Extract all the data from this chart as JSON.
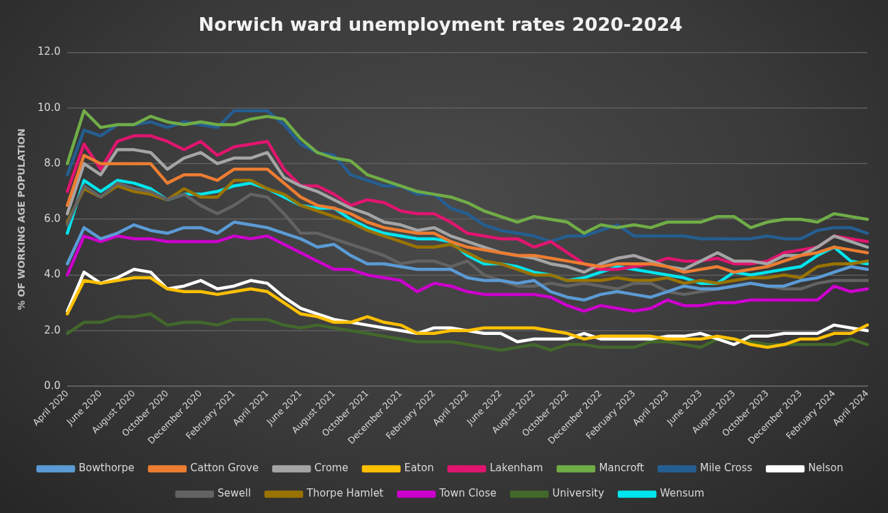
{
  "chart_data": {
    "type": "line",
    "title": "Norwich ward unemployment rates 2020-2024",
    "ylabel": "% OF WORKING AGE POPULATION",
    "categories": [
      "April 2020",
      null,
      "June 2020",
      null,
      "August 2020",
      null,
      "October 2020",
      null,
      "December 2020",
      null,
      "February 2021",
      null,
      "April 2021",
      null,
      "June 2021",
      null,
      "August 2021",
      null,
      "October 2021",
      null,
      "December 2021",
      null,
      "February 2022",
      null,
      "April 2022",
      null,
      "June 2022",
      null,
      "August 2022",
      null,
      "October 2022",
      null,
      "December 2022",
      null,
      "February 2023",
      null,
      "April 2023",
      null,
      "June 2023",
      null,
      "August 2023",
      null,
      "October 2023",
      null,
      "December 2023",
      null,
      "February 2024",
      null,
      "April 2024"
    ],
    "ylim": [
      0,
      12
    ],
    "yticks": [
      {
        "value": 0,
        "label": "0.0"
      },
      {
        "value": 2,
        "label": "2.0"
      },
      {
        "value": 4,
        "label": "4.0"
      },
      {
        "value": 6,
        "label": "6.0"
      },
      {
        "value": 8,
        "label": "8.0"
      },
      {
        "value": 10,
        "label": "10.0"
      },
      {
        "value": 12,
        "label": "12.0"
      }
    ],
    "grid": "y",
    "legend": "bottom",
    "marker": "none",
    "line_style": "solid",
    "series": [
      {
        "name": "Bowthorpe",
        "color": "#5b9bd5",
        "values": [
          4.4,
          5.7,
          5.3,
          5.5,
          5.8,
          5.6,
          5.5,
          5.7,
          5.7,
          5.5,
          5.9,
          5.8,
          5.7,
          5.5,
          5.3,
          5.0,
          5.1,
          4.7,
          4.4,
          4.4,
          4.3,
          4.2,
          4.2,
          4.2,
          3.9,
          3.8,
          3.8,
          3.7,
          3.8,
          3.4,
          3.2,
          3.1,
          3.3,
          3.4,
          3.3,
          3.2,
          3.4,
          3.6,
          3.5,
          3.5,
          3.6,
          3.7,
          3.6,
          3.6,
          3.8,
          3.9,
          4.1,
          4.3,
          4.2
        ]
      },
      {
        "name": "Catton Grove",
        "color": "#ed7d31",
        "values": [
          6.5,
          8.3,
          8.0,
          8.0,
          8.0,
          8.0,
          7.3,
          7.6,
          7.6,
          7.4,
          7.8,
          7.8,
          7.8,
          7.3,
          6.8,
          6.5,
          6.4,
          6.2,
          5.9,
          5.7,
          5.6,
          5.5,
          5.5,
          5.2,
          5.0,
          4.9,
          4.8,
          4.7,
          4.7,
          4.6,
          4.5,
          4.4,
          4.3,
          4.4,
          4.4,
          4.4,
          4.3,
          4.1,
          4.2,
          4.3,
          4.1,
          4.2,
          4.3,
          4.5,
          4.7,
          4.8,
          5.0,
          4.9,
          4.8
        ]
      },
      {
        "name": "Crome",
        "color": "#a5a5a5",
        "values": [
          6.2,
          8.0,
          7.6,
          8.5,
          8.5,
          8.4,
          7.8,
          8.2,
          8.4,
          8.0,
          8.2,
          8.2,
          8.4,
          7.5,
          7.2,
          7.0,
          6.7,
          6.4,
          6.2,
          5.9,
          5.8,
          5.6,
          5.7,
          5.4,
          5.2,
          5.0,
          4.8,
          4.7,
          4.6,
          4.4,
          4.3,
          4.1,
          4.4,
          4.6,
          4.7,
          4.5,
          4.3,
          4.2,
          4.5,
          4.8,
          4.5,
          4.5,
          4.4,
          4.7,
          4.7,
          5.0,
          5.4,
          5.2,
          5.0
        ]
      },
      {
        "name": "Eaton",
        "color": "#ffc000",
        "values": [
          2.6,
          3.8,
          3.7,
          3.8,
          3.9,
          3.9,
          3.5,
          3.4,
          3.4,
          3.3,
          3.4,
          3.5,
          3.4,
          3.0,
          2.6,
          2.5,
          2.3,
          2.3,
          2.5,
          2.3,
          2.2,
          1.9,
          1.9,
          2.0,
          2.0,
          2.1,
          2.1,
          2.1,
          2.1,
          2.0,
          1.9,
          1.7,
          1.8,
          1.8,
          1.8,
          1.8,
          1.7,
          1.7,
          1.7,
          1.8,
          1.7,
          1.5,
          1.4,
          1.5,
          1.7,
          1.7,
          1.9,
          1.9,
          2.2
        ]
      },
      {
        "name": "Lakenham",
        "color": "#e0156f",
        "values": [
          7.0,
          8.7,
          7.8,
          8.8,
          9.0,
          9.0,
          8.8,
          8.5,
          8.8,
          8.3,
          8.6,
          8.7,
          8.8,
          7.8,
          7.2,
          7.2,
          6.9,
          6.5,
          6.7,
          6.6,
          6.3,
          6.2,
          6.2,
          5.9,
          5.5,
          5.4,
          5.3,
          5.3,
          5.0,
          5.2,
          4.8,
          4.4,
          4.2,
          4.2,
          4.3,
          4.4,
          4.6,
          4.5,
          4.5,
          4.6,
          4.4,
          4.4,
          4.5,
          4.8,
          4.9,
          5.0,
          5.4,
          5.3,
          5.2
        ]
      },
      {
        "name": "Mancroft",
        "color": "#70ad47",
        "values": [
          8.0,
          9.9,
          9.3,
          9.4,
          9.4,
          9.7,
          9.5,
          9.4,
          9.5,
          9.4,
          9.4,
          9.6,
          9.7,
          9.6,
          8.9,
          8.4,
          8.2,
          8.1,
          7.6,
          7.4,
          7.2,
          7.0,
          6.9,
          6.8,
          6.6,
          6.3,
          6.1,
          5.9,
          6.1,
          6.0,
          5.9,
          5.5,
          5.8,
          5.7,
          5.8,
          5.7,
          5.9,
          5.9,
          5.9,
          6.1,
          6.1,
          5.7,
          5.9,
          6.0,
          6.0,
          5.9,
          6.2,
          6.1,
          6.0
        ]
      },
      {
        "name": "Mile Cross",
        "color": "#255e91",
        "values": [
          7.6,
          9.2,
          9.0,
          9.4,
          9.4,
          9.5,
          9.3,
          9.5,
          9.4,
          9.3,
          9.9,
          9.9,
          9.9,
          9.4,
          8.7,
          8.4,
          8.3,
          7.6,
          7.4,
          7.2,
          7.2,
          6.9,
          6.9,
          6.4,
          6.2,
          5.8,
          5.6,
          5.5,
          5.4,
          5.2,
          5.4,
          5.4,
          5.6,
          5.8,
          5.4,
          5.4,
          5.4,
          5.4,
          5.3,
          5.3,
          5.3,
          5.3,
          5.4,
          5.3,
          5.3,
          5.6,
          5.7,
          5.7,
          5.5
        ]
      },
      {
        "name": "Nelson",
        "color": "#ffffff",
        "values": [
          2.7,
          4.1,
          3.7,
          3.9,
          4.2,
          4.1,
          3.5,
          3.6,
          3.8,
          3.5,
          3.6,
          3.8,
          3.7,
          3.2,
          2.8,
          2.6,
          2.4,
          2.3,
          2.2,
          2.1,
          2.0,
          1.9,
          2.1,
          2.1,
          2.0,
          1.9,
          1.9,
          1.6,
          1.7,
          1.7,
          1.7,
          1.9,
          1.7,
          1.7,
          1.7,
          1.7,
          1.8,
          1.8,
          1.9,
          1.7,
          1.5,
          1.8,
          1.8,
          1.9,
          1.9,
          1.9,
          2.2,
          2.1,
          2.0
        ]
      },
      {
        "name": "Sewell",
        "color": "#636363",
        "values": [
          5.8,
          7.2,
          6.8,
          7.3,
          7.1,
          7.0,
          6.7,
          6.9,
          6.5,
          6.2,
          6.5,
          6.9,
          6.8,
          6.2,
          5.5,
          5.5,
          5.3,
          5.1,
          4.9,
          4.7,
          4.4,
          4.5,
          4.5,
          4.3,
          4.5,
          4.0,
          3.8,
          3.6,
          3.6,
          3.7,
          3.6,
          3.7,
          3.6,
          3.5,
          3.7,
          3.7,
          3.4,
          3.3,
          3.4,
          3.5,
          3.6,
          3.7,
          3.6,
          3.5,
          3.5,
          3.7,
          3.8,
          3.8,
          3.8
        ]
      },
      {
        "name": "Thorpe Hamlet",
        "color": "#997300",
        "values": [
          5.9,
          7.1,
          6.8,
          7.2,
          7.0,
          6.9,
          6.7,
          7.1,
          6.8,
          6.8,
          7.4,
          7.4,
          7.1,
          6.9,
          6.5,
          6.3,
          6.1,
          5.9,
          5.6,
          5.4,
          5.2,
          5.0,
          5.0,
          5.1,
          4.8,
          4.5,
          4.4,
          4.2,
          4.0,
          4.0,
          3.8,
          3.8,
          3.8,
          3.9,
          3.8,
          3.8,
          3.9,
          3.7,
          3.8,
          3.7,
          3.8,
          3.9,
          3.9,
          4.0,
          3.9,
          4.3,
          4.4,
          4.4,
          4.5
        ]
      },
      {
        "name": "Town Close",
        "color": "#cc00cc",
        "values": [
          4.0,
          5.4,
          5.2,
          5.4,
          5.3,
          5.3,
          5.2,
          5.2,
          5.2,
          5.2,
          5.4,
          5.3,
          5.4,
          5.1,
          4.8,
          4.5,
          4.2,
          4.2,
          4.0,
          3.9,
          3.8,
          3.4,
          3.7,
          3.6,
          3.4,
          3.3,
          3.3,
          3.3,
          3.3,
          3.2,
          2.9,
          2.7,
          2.9,
          2.8,
          2.7,
          2.8,
          3.1,
          2.9,
          2.9,
          3.0,
          3.0,
          3.1,
          3.1,
          3.1,
          3.1,
          3.1,
          3.6,
          3.4,
          3.5
        ]
      },
      {
        "name": "University",
        "color": "#43682b",
        "values": [
          1.9,
          2.3,
          2.3,
          2.5,
          2.5,
          2.6,
          2.2,
          2.3,
          2.3,
          2.2,
          2.4,
          2.4,
          2.4,
          2.2,
          2.1,
          2.2,
          2.1,
          2.0,
          1.9,
          1.8,
          1.7,
          1.6,
          1.6,
          1.6,
          1.5,
          1.4,
          1.3,
          1.4,
          1.5,
          1.3,
          1.5,
          1.5,
          1.4,
          1.4,
          1.4,
          1.6,
          1.6,
          1.5,
          1.4,
          1.7,
          1.7,
          1.6,
          1.5,
          1.5,
          1.5,
          1.5,
          1.5,
          1.7,
          1.5
        ]
      },
      {
        "name": "Wensum",
        "color": "#00e5ee",
        "values": [
          5.5,
          7.4,
          7.0,
          7.4,
          7.3,
          7.1,
          6.7,
          6.9,
          6.9,
          7.0,
          7.2,
          7.3,
          7.1,
          6.8,
          6.5,
          6.4,
          6.4,
          6.0,
          5.7,
          5.5,
          5.4,
          5.3,
          5.3,
          5.2,
          4.7,
          4.4,
          4.4,
          4.3,
          4.1,
          4.0,
          3.8,
          3.9,
          4.1,
          4.3,
          4.2,
          4.1,
          4.0,
          3.9,
          3.7,
          3.7,
          4.1,
          4.0,
          4.1,
          4.2,
          4.3,
          4.7,
          5.0,
          4.5,
          4.4
        ]
      }
    ]
  }
}
